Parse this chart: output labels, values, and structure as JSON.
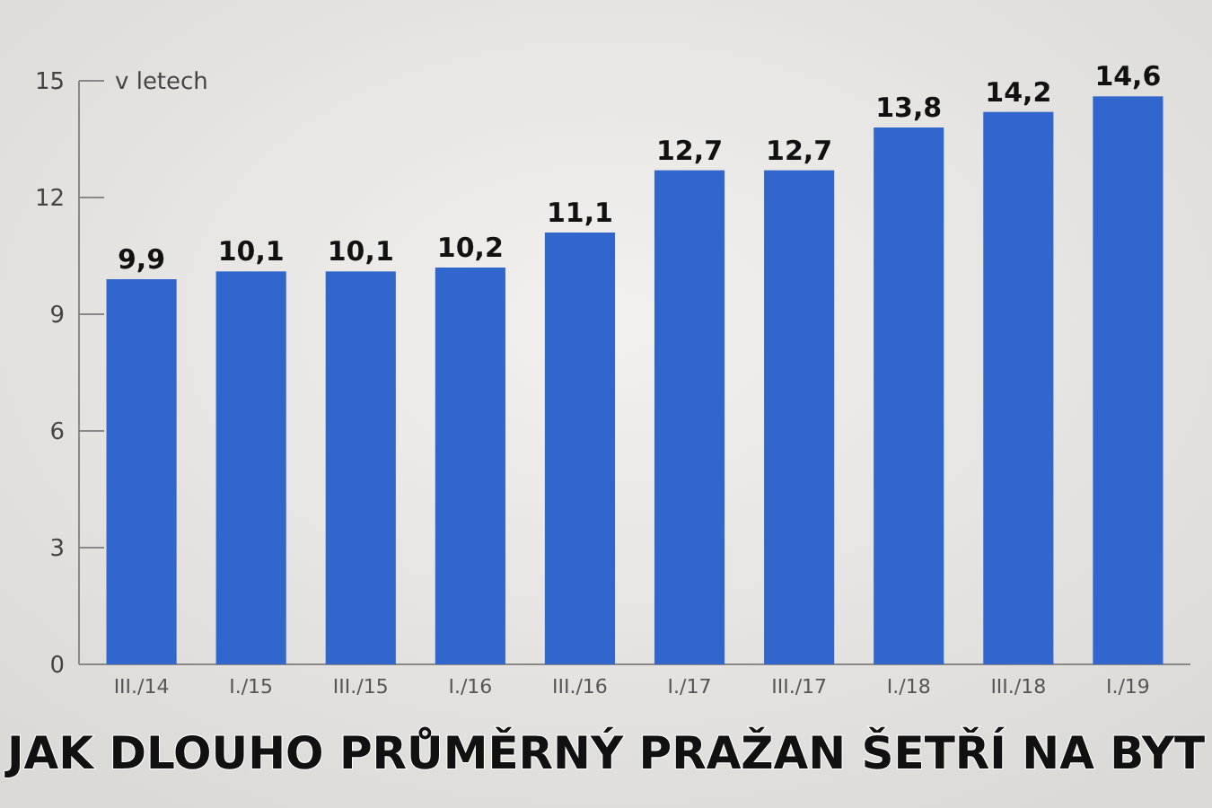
{
  "chart_data": {
    "type": "bar",
    "title": "JAK DLOUHO PRŮMĚRNÝ PRAŽAN ŠETŘÍ NA BYT",
    "ylabel": "v letech",
    "categories": [
      "III./14",
      "I./15",
      "III./15",
      "I./16",
      "III./16",
      "I./17",
      "III./17",
      "I./18",
      "III./18",
      "I./19"
    ],
    "values": [
      9.9,
      10.1,
      10.1,
      10.2,
      11.1,
      12.7,
      12.7,
      13.8,
      14.2,
      14.6
    ],
    "value_labels": [
      "9,9",
      "10,1",
      "10,1",
      "10,2",
      "11,1",
      "12,7",
      "12,7",
      "13,8",
      "14,2",
      "14,6"
    ],
    "color": "#3166cc",
    "ylim": [
      0,
      15
    ],
    "yticks": [
      0,
      3,
      6,
      9,
      12,
      15
    ],
    "grid": false
  }
}
